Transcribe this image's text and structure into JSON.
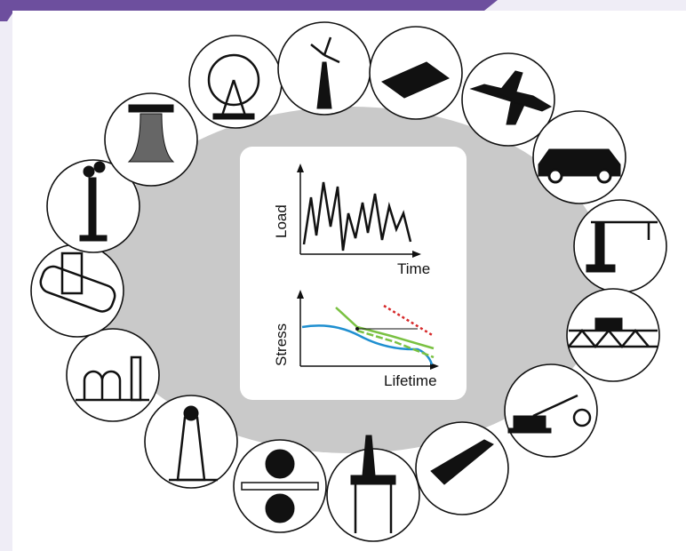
{
  "center_panel": {
    "top_plot": {
      "y_label": "Load",
      "x_label": "Time"
    },
    "bottom_plot": {
      "y_label": "Stress",
      "x_label": "Lifetime"
    }
  }
}
